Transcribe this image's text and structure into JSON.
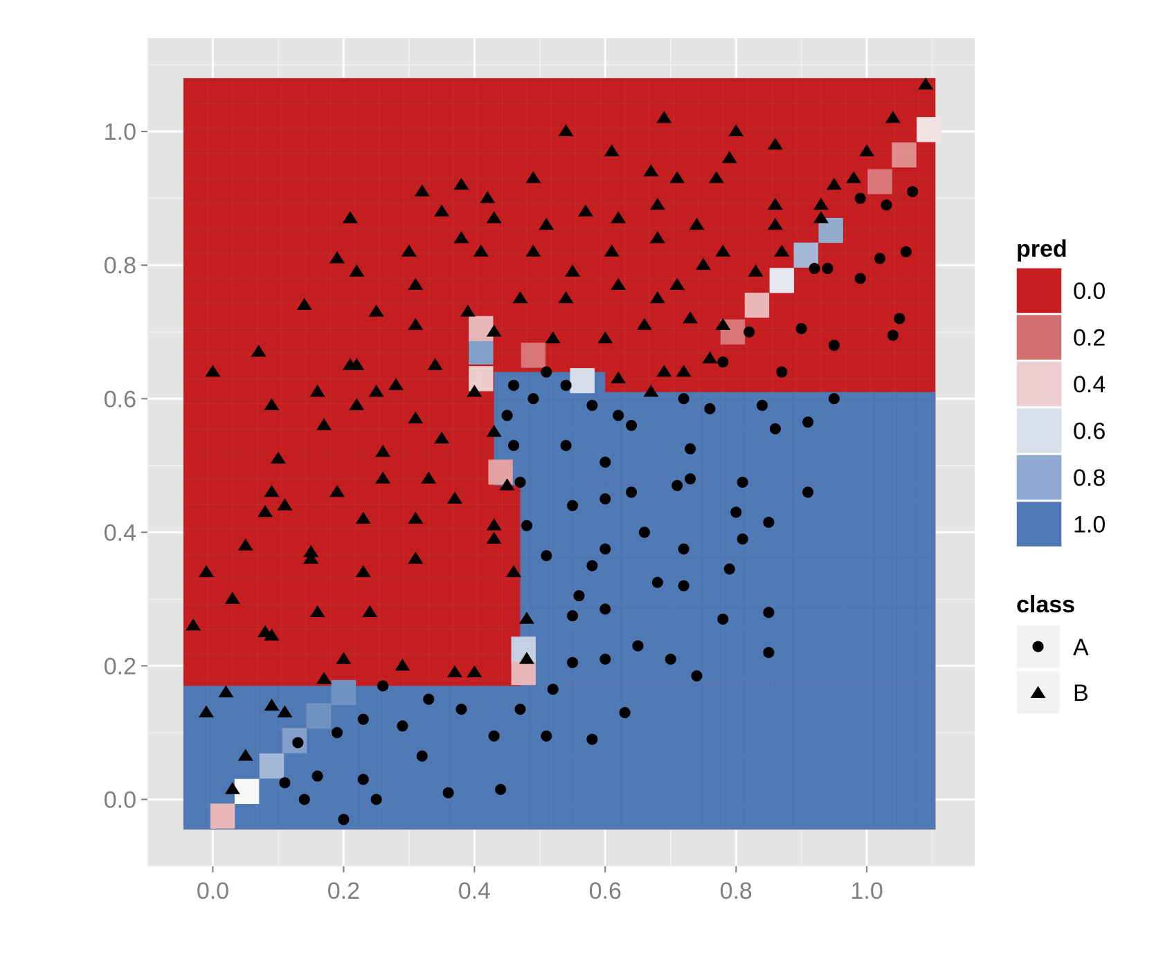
{
  "chart_data": {
    "type": "heatmap",
    "title": "",
    "xlabel": "",
    "ylabel": "",
    "xlim": [
      -0.1,
      1.165
    ],
    "ylim": [
      -0.1,
      1.14
    ],
    "x_ticks": [
      "0.0",
      "0.2",
      "0.4",
      "0.6",
      "0.8",
      "1.0"
    ],
    "y_ticks": [
      "0.0",
      "0.2",
      "0.4",
      "0.6",
      "0.8",
      "1.0"
    ],
    "grid": true,
    "legend_position": "right",
    "colors": {
      "panel_bg": "#e5e5e5",
      "gridline": "#ffffff",
      "low": "#c41e21",
      "mid": "#f7f7f7",
      "high": "#4f79b4",
      "points": "#000000"
    },
    "prediction_surface": {
      "description_of_fields": "grid of predicted class-B probability cells",
      "x_range": [
        -0.045,
        1.105
      ],
      "y_range": [
        -0.045,
        1.08
      ],
      "cell_size": 0.0375,
      "fill_variable": "pred",
      "default_value": 0.0,
      "blue_regions": [
        {
          "x": [
            -0.045,
            1.105
          ],
          "y": [
            -0.045,
            0.17
          ]
        },
        {
          "x": [
            0.47,
            1.105
          ],
          "y": [
            0.17,
            0.47
          ]
        },
        {
          "x": [
            0.43,
            0.6
          ],
          "y": [
            0.47,
            0.64
          ]
        },
        {
          "x": [
            0.6,
            1.105
          ],
          "y": [
            0.47,
            0.61
          ]
        }
      ],
      "cell_values": [
        {
          "x": 0.015,
          "y": -0.025,
          "v": 0.35
        },
        {
          "x": 0.052,
          "y": 0.012,
          "v": 0.5
        },
        {
          "x": 0.09,
          "y": 0.05,
          "v": 0.75
        },
        {
          "x": 0.125,
          "y": 0.088,
          "v": 0.85
        },
        {
          "x": 0.162,
          "y": 0.125,
          "v": 0.9
        },
        {
          "x": 0.2,
          "y": 0.16,
          "v": 0.9
        },
        {
          "x": 0.475,
          "y": 0.19,
          "v": 0.35
        },
        {
          "x": 0.475,
          "y": 0.225,
          "v": 0.65
        },
        {
          "x": 0.44,
          "y": 0.49,
          "v": 0.3
        },
        {
          "x": 0.41,
          "y": 0.63,
          "v": 0.4
        },
        {
          "x": 0.41,
          "y": 0.67,
          "v": 0.85
        },
        {
          "x": 0.41,
          "y": 0.705,
          "v": 0.35
        },
        {
          "x": 0.49,
          "y": 0.665,
          "v": 0.2
        },
        {
          "x": 0.565,
          "y": 0.627,
          "v": 0.6
        },
        {
          "x": 0.795,
          "y": 0.7,
          "v": 0.2
        },
        {
          "x": 0.832,
          "y": 0.74,
          "v": 0.35
        },
        {
          "x": 0.87,
          "y": 0.777,
          "v": 0.55
        },
        {
          "x": 0.907,
          "y": 0.815,
          "v": 0.75
        },
        {
          "x": 0.945,
          "y": 0.852,
          "v": 0.8
        },
        {
          "x": 1.02,
          "y": 0.925,
          "v": 0.2
        },
        {
          "x": 1.057,
          "y": 0.965,
          "v": 0.25
        },
        {
          "x": 1.095,
          "y": 1.003,
          "v": 0.45
        }
      ]
    },
    "legends": [
      {
        "title": "pred",
        "type": "colorbar",
        "labels": [
          "0.0",
          "0.2",
          "0.4",
          "0.6",
          "0.8",
          "1.0"
        ],
        "colors": [
          "#c41e21",
          "#d27070",
          "#ecced1",
          "#d8e0ec",
          "#8eaad2",
          "#4f79b4"
        ]
      },
      {
        "title": "class",
        "type": "shape",
        "entries": [
          {
            "label": "A",
            "shape": "circle"
          },
          {
            "label": "B",
            "shape": "triangle"
          }
        ]
      }
    ],
    "series": [
      {
        "name": "A",
        "shape": "circle",
        "points": [
          [
            0.2,
            -0.03
          ],
          [
            0.36,
            0.01
          ],
          [
            0.44,
            0.015
          ],
          [
            0.25,
            0.0
          ],
          [
            0.14,
            0.0
          ],
          [
            0.23,
            0.03
          ],
          [
            0.16,
            0.035
          ],
          [
            0.11,
            0.025
          ],
          [
            0.13,
            0.085
          ],
          [
            0.19,
            0.1
          ],
          [
            0.29,
            0.11
          ],
          [
            0.23,
            0.12
          ],
          [
            0.32,
            0.065
          ],
          [
            0.33,
            0.15
          ],
          [
            0.38,
            0.135
          ],
          [
            0.43,
            0.095
          ],
          [
            0.47,
            0.135
          ],
          [
            0.51,
            0.095
          ],
          [
            0.58,
            0.09
          ],
          [
            0.63,
            0.13
          ],
          [
            0.52,
            0.165
          ],
          [
            0.26,
            0.17
          ],
          [
            0.55,
            0.205
          ],
          [
            0.6,
            0.21
          ],
          [
            0.65,
            0.23
          ],
          [
            0.7,
            0.21
          ],
          [
            0.74,
            0.185
          ],
          [
            0.55,
            0.275
          ],
          [
            0.56,
            0.305
          ],
          [
            0.58,
            0.35
          ],
          [
            0.6,
            0.285
          ],
          [
            0.6,
            0.375
          ],
          [
            0.68,
            0.325
          ],
          [
            0.72,
            0.32
          ],
          [
            0.72,
            0.375
          ],
          [
            0.66,
            0.4
          ],
          [
            0.51,
            0.365
          ],
          [
            0.48,
            0.41
          ],
          [
            0.47,
            0.475
          ],
          [
            0.55,
            0.44
          ],
          [
            0.6,
            0.45
          ],
          [
            0.64,
            0.46
          ],
          [
            0.71,
            0.47
          ],
          [
            0.73,
            0.48
          ],
          [
            0.6,
            0.505
          ],
          [
            0.73,
            0.525
          ],
          [
            0.54,
            0.53
          ],
          [
            0.46,
            0.53
          ],
          [
            0.45,
            0.575
          ],
          [
            0.46,
            0.62
          ],
          [
            0.49,
            0.6
          ],
          [
            0.51,
            0.64
          ],
          [
            0.54,
            0.62
          ],
          [
            0.58,
            0.59
          ],
          [
            0.62,
            0.575
          ],
          [
            0.64,
            0.56
          ],
          [
            0.72,
            0.6
          ],
          [
            0.76,
            0.585
          ],
          [
            0.78,
            0.655
          ],
          [
            0.82,
            0.7
          ],
          [
            0.84,
            0.59
          ],
          [
            0.86,
            0.555
          ],
          [
            0.87,
            0.64
          ],
          [
            0.9,
            0.705
          ],
          [
            0.91,
            0.565
          ],
          [
            0.95,
            0.68
          ],
          [
            0.95,
            0.6
          ],
          [
            0.91,
            0.46
          ],
          [
            0.8,
            0.43
          ],
          [
            0.81,
            0.39
          ],
          [
            0.81,
            0.475
          ],
          [
            0.85,
            0.415
          ],
          [
            0.79,
            0.345
          ],
          [
            0.78,
            0.27
          ],
          [
            0.85,
            0.28
          ],
          [
            0.85,
            0.22
          ],
          [
            0.92,
            0.795
          ],
          [
            0.94,
            0.795
          ],
          [
            0.99,
            0.78
          ],
          [
            0.99,
            0.9
          ],
          [
            1.03,
            0.89
          ],
          [
            1.07,
            0.91
          ],
          [
            1.02,
            0.81
          ],
          [
            1.06,
            0.82
          ],
          [
            1.05,
            0.72
          ],
          [
            1.04,
            0.695
          ]
        ]
      },
      {
        "name": "B",
        "shape": "triangle",
        "points": [
          [
            -0.03,
            0.26
          ],
          [
            -0.01,
            0.34
          ],
          [
            0.03,
            0.3
          ],
          [
            -0.01,
            0.13
          ],
          [
            0.02,
            0.16
          ],
          [
            0.03,
            0.015
          ],
          [
            0.05,
            0.065
          ],
          [
            0.05,
            0.38
          ],
          [
            0.08,
            0.25
          ],
          [
            0.09,
            0.245
          ],
          [
            0.09,
            0.14
          ],
          [
            0.11,
            0.13
          ],
          [
            0.08,
            0.43
          ],
          [
            0.09,
            0.46
          ],
          [
            0.11,
            0.44
          ],
          [
            0.1,
            0.51
          ],
          [
            0.09,
            0.59
          ],
          [
            0.07,
            0.67
          ],
          [
            0.0,
            0.64
          ],
          [
            0.15,
            0.37
          ],
          [
            0.15,
            0.36
          ],
          [
            0.16,
            0.28
          ],
          [
            0.17,
            0.18
          ],
          [
            0.2,
            0.21
          ],
          [
            0.19,
            0.46
          ],
          [
            0.23,
            0.34
          ],
          [
            0.24,
            0.28
          ],
          [
            0.23,
            0.42
          ],
          [
            0.16,
            0.61
          ],
          [
            0.17,
            0.56
          ],
          [
            0.21,
            0.65
          ],
          [
            0.22,
            0.59
          ],
          [
            0.22,
            0.65
          ],
          [
            0.25,
            0.61
          ],
          [
            0.26,
            0.52
          ],
          [
            0.26,
            0.48
          ],
          [
            0.28,
            0.62
          ],
          [
            0.31,
            0.71
          ],
          [
            0.31,
            0.57
          ],
          [
            0.31,
            0.42
          ],
          [
            0.31,
            0.36
          ],
          [
            0.29,
            0.2
          ],
          [
            0.37,
            0.19
          ],
          [
            0.4,
            0.19
          ],
          [
            0.33,
            0.48
          ],
          [
            0.35,
            0.54
          ],
          [
            0.37,
            0.45
          ],
          [
            0.34,
            0.65
          ],
          [
            0.39,
            0.73
          ],
          [
            0.4,
            0.61
          ],
          [
            0.43,
            0.55
          ],
          [
            0.45,
            0.47
          ],
          [
            0.43,
            0.41
          ],
          [
            0.43,
            0.39
          ],
          [
            0.46,
            0.34
          ],
          [
            0.48,
            0.27
          ],
          [
            0.48,
            0.21
          ],
          [
            0.14,
            0.74
          ],
          [
            0.19,
            0.81
          ],
          [
            0.22,
            0.79
          ],
          [
            0.25,
            0.73
          ],
          [
            0.3,
            0.82
          ],
          [
            0.31,
            0.77
          ],
          [
            0.21,
            0.87
          ],
          [
            0.32,
            0.91
          ],
          [
            0.35,
            0.88
          ],
          [
            0.38,
            0.92
          ],
          [
            0.38,
            0.84
          ],
          [
            0.41,
            0.82
          ],
          [
            0.43,
            0.87
          ],
          [
            0.42,
            0.9
          ],
          [
            0.43,
            0.7
          ],
          [
            0.47,
            0.75
          ],
          [
            0.49,
            0.82
          ],
          [
            0.49,
            0.93
          ],
          [
            0.51,
            0.86
          ],
          [
            0.52,
            0.69
          ],
          [
            0.54,
            0.75
          ],
          [
            0.54,
            1.0
          ],
          [
            0.55,
            0.79
          ],
          [
            0.57,
            0.88
          ],
          [
            0.6,
            0.69
          ],
          [
            0.61,
            0.82
          ],
          [
            0.61,
            0.97
          ],
          [
            0.62,
            0.87
          ],
          [
            0.62,
            0.77
          ],
          [
            0.62,
            0.63
          ],
          [
            0.66,
            0.71
          ],
          [
            0.67,
            0.61
          ],
          [
            0.67,
            0.94
          ],
          [
            0.68,
            0.89
          ],
          [
            0.68,
            0.75
          ],
          [
            0.68,
            0.84
          ],
          [
            0.69,
            0.64
          ],
          [
            0.69,
            1.02
          ],
          [
            0.71,
            0.93
          ],
          [
            0.71,
            0.77
          ],
          [
            0.72,
            0.64
          ],
          [
            0.73,
            0.72
          ],
          [
            0.74,
            0.86
          ],
          [
            0.75,
            0.8
          ],
          [
            0.76,
            0.66
          ],
          [
            0.77,
            0.93
          ],
          [
            0.78,
            0.71
          ],
          [
            0.78,
            0.82
          ],
          [
            0.79,
            0.96
          ],
          [
            0.8,
            1.0
          ],
          [
            0.83,
            0.79
          ],
          [
            0.86,
            0.86
          ],
          [
            0.86,
            0.89
          ],
          [
            0.86,
            0.98
          ],
          [
            0.87,
            0.82
          ],
          [
            0.93,
            0.89
          ],
          [
            0.93,
            0.87
          ],
          [
            0.95,
            0.92
          ],
          [
            0.98,
            0.93
          ],
          [
            1.0,
            0.97
          ],
          [
            1.04,
            1.02
          ],
          [
            1.09,
            1.07
          ]
        ]
      }
    ]
  }
}
